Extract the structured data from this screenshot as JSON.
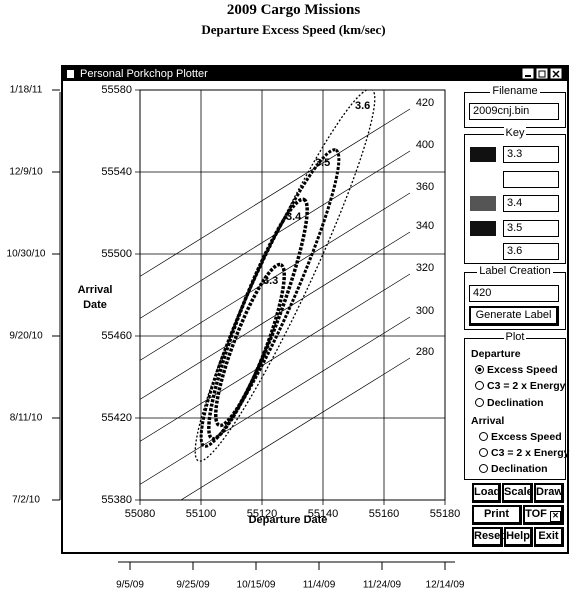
{
  "header": {
    "title": "2009 Cargo Missions",
    "subtitle": "Departure Excess Speed (km/sec)"
  },
  "window": {
    "title": "Personal Porkchop Plotter"
  },
  "plot": {
    "x_axis_label": "Departure Date",
    "y_axis_label_line1": "Arrival",
    "y_axis_label_line2": "Date",
    "x_ticks": [
      55080,
      55100,
      55120,
      55140,
      55160,
      55180
    ],
    "y_ticks": [
      55580,
      55540,
      55500,
      55460,
      55420,
      55380
    ],
    "tof_labels": [
      "420",
      "400",
      "360",
      "340",
      "320",
      "300",
      "280"
    ],
    "contour_labels": [
      "3.6",
      "3.5",
      "3.4",
      "3.3"
    ]
  },
  "date_axes": {
    "arrival": [
      "1/18/11",
      "12/9/10",
      "10/30/10",
      "9/20/10",
      "8/11/10",
      "7/2/10"
    ],
    "departure": [
      "9/5/09",
      "9/25/09",
      "10/15/09",
      "11/4/09",
      "11/24/09",
      "12/14/09"
    ]
  },
  "panel": {
    "filename_label": "Filename",
    "filename": "2009cnj.bin",
    "key_label": "Key",
    "key_values": [
      "3.3",
      "3.4",
      "3.5",
      "3.6"
    ],
    "label_creation": "Label Creation",
    "label_value": "420",
    "generate": "Generate Label",
    "plot_label": "Plot",
    "departure": "Departure",
    "arrival": "Arrival",
    "options": [
      "Excess Speed",
      "C3 = 2 x Energy",
      "Declination"
    ],
    "buttons": [
      "Load",
      "Scale",
      "Draw",
      "Print",
      "TOF",
      "Reset",
      "Help",
      "Exit"
    ]
  }
}
